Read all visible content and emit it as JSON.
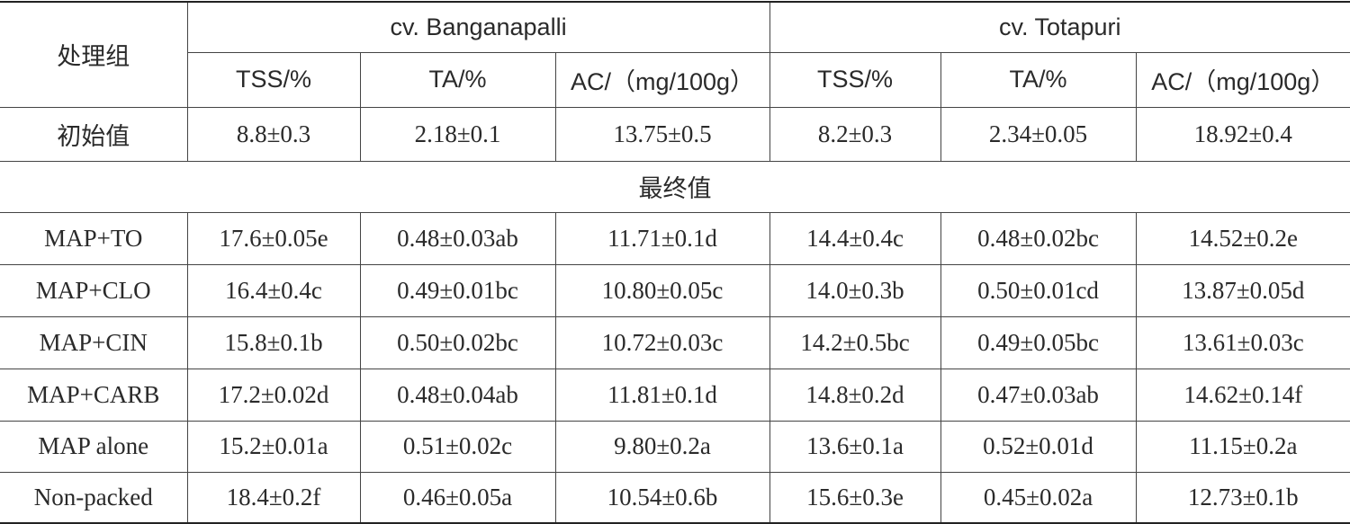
{
  "header": {
    "group": "处理组",
    "varieties": [
      "cv. Banganapalli",
      "cv. Totapuri"
    ],
    "columns": [
      "TSS/%",
      "TA/%",
      "AC/（mg/100g）",
      "TSS/%",
      "TA/%",
      "AC/（mg/100g）"
    ]
  },
  "initial": {
    "label": "初始值",
    "cells": [
      "8.8±0.3",
      "2.18±0.1",
      "13.75±0.5",
      "8.2±0.3",
      "2.34±0.05",
      "18.92±0.4"
    ]
  },
  "final_label": "最终值",
  "rows": [
    {
      "label": "MAP+TO",
      "cells": [
        "17.6±0.05e",
        "0.48±0.03ab",
        "11.71±0.1d",
        "14.4±0.4c",
        "0.48±0.02bc",
        "14.52±0.2e"
      ]
    },
    {
      "label": "MAP+CLO",
      "cells": [
        "16.4±0.4c",
        "0.49±0.01bc",
        "10.80±0.05c",
        "14.0±0.3b",
        "0.50±0.01cd",
        "13.87±0.05d"
      ]
    },
    {
      "label": "MAP+CIN",
      "cells": [
        "15.8±0.1b",
        "0.50±0.02bc",
        "10.72±0.03c",
        "14.2±0.5bc",
        "0.49±0.05bc",
        "13.61±0.03c"
      ]
    },
    {
      "label": "MAP+CARB",
      "cells": [
        "17.2±0.02d",
        "0.48±0.04ab",
        "11.81±0.1d",
        "14.8±0.2d",
        "0.47±0.03ab",
        "14.62±0.14f"
      ]
    },
    {
      "label": "MAP alone",
      "cells": [
        "15.2±0.01a",
        "0.51±0.02c",
        "9.80±0.2a",
        "13.6±0.1a",
        "0.52±0.01d",
        "11.15±0.2a"
      ]
    },
    {
      "label": "Non-packed",
      "cells": [
        "18.4±0.2f",
        "0.46±0.05a",
        "10.54±0.6b",
        "15.6±0.3e",
        "0.45±0.02a",
        "12.73±0.1b"
      ]
    }
  ]
}
